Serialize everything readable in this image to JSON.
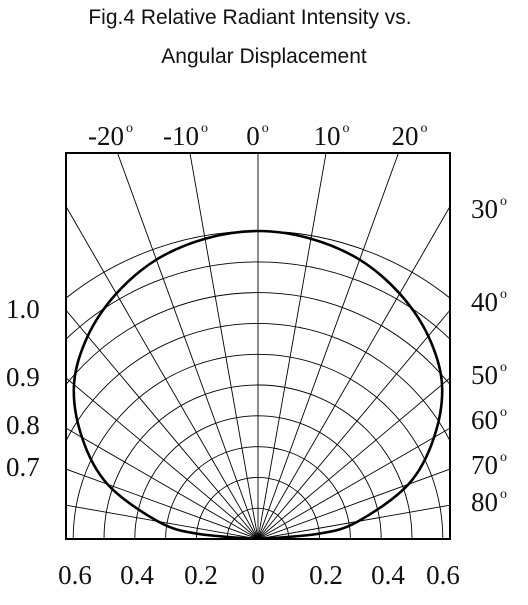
{
  "title": {
    "line1": "Fig.4  Relative Radiant Intensity vs.",
    "line2": "Angular Displacement"
  },
  "chart_data": {
    "type": "polar",
    "title": "Fig.4  Relative Radiant Intensity vs. Angular Displacement",
    "theta_unit": "degrees",
    "r_range": [
      0,
      1.0
    ],
    "grid": true,
    "top_angle_labels": [
      "-20",
      "-10",
      "0",
      "10",
      "20"
    ],
    "right_angle_labels": [
      "30",
      "40",
      "50",
      "60",
      "70",
      "80"
    ],
    "left_radius_labels": [
      "1.0",
      "0.9",
      "0.8",
      "0.7"
    ],
    "bottom_labels": [
      "0.6",
      "0.4",
      "0.2",
      "0",
      "0.2",
      "0.4",
      "0.6"
    ],
    "degree_symbol": "o",
    "series": [
      {
        "theta": [
          0,
          10,
          20,
          30,
          40,
          50,
          60,
          70,
          80,
          85,
          90
        ],
        "r": [
          1.0,
          0.99,
          0.965,
          0.92,
          0.86,
          0.78,
          0.66,
          0.52,
          0.33,
          0.2,
          0.0
        ]
      }
    ]
  }
}
